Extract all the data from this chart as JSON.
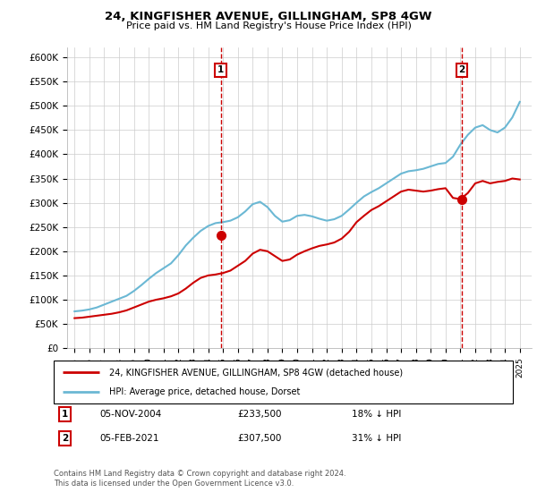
{
  "title": "24, KINGFISHER AVENUE, GILLINGHAM, SP8 4GW",
  "subtitle": "Price paid vs. HM Land Registry's House Price Index (HPI)",
  "ylabel_ticks": [
    "£0",
    "£50K",
    "£100K",
    "£150K",
    "£200K",
    "£250K",
    "£300K",
    "£350K",
    "£400K",
    "£450K",
    "£500K",
    "£550K",
    "£600K"
  ],
  "ytick_values": [
    0,
    50000,
    100000,
    150000,
    200000,
    250000,
    300000,
    350000,
    400000,
    450000,
    500000,
    550000,
    600000
  ],
  "ylim": [
    0,
    620000
  ],
  "xlim_start": 1994.5,
  "xlim_end": 2025.8,
  "hpi_color": "#6BB8D4",
  "price_color": "#CC0000",
  "marker1_date": 2004.85,
  "marker1_price": 233500,
  "marker1_label": "1",
  "marker1_text": "05-NOV-2004",
  "marker1_amount": "£233,500",
  "marker1_pct": "18% ↓ HPI",
  "marker2_date": 2021.08,
  "marker2_price": 307500,
  "marker2_label": "2",
  "marker2_text": "05-FEB-2021",
  "marker2_amount": "£307,500",
  "marker2_pct": "31% ↓ HPI",
  "legend_line1": "24, KINGFISHER AVENUE, GILLINGHAM, SP8 4GW (detached house)",
  "legend_line2": "HPI: Average price, detached house, Dorset",
  "footer": "Contains HM Land Registry data © Crown copyright and database right 2024.\nThis data is licensed under the Open Government Licence v3.0.",
  "hpi_x": [
    1995,
    1995.5,
    1996,
    1996.5,
    1997,
    1997.5,
    1998,
    1998.5,
    1999,
    1999.5,
    2000,
    2000.5,
    2001,
    2001.5,
    2002,
    2002.5,
    2003,
    2003.5,
    2004,
    2004.5,
    2005,
    2005.5,
    2006,
    2006.5,
    2007,
    2007.5,
    2008,
    2008.5,
    2009,
    2009.5,
    2010,
    2010.5,
    2011,
    2011.5,
    2012,
    2012.5,
    2013,
    2013.5,
    2014,
    2014.5,
    2015,
    2015.5,
    2016,
    2016.5,
    2017,
    2017.5,
    2018,
    2018.5,
    2019,
    2019.5,
    2020,
    2020.5,
    2021,
    2021.5,
    2022,
    2022.5,
    2023,
    2023.5,
    2024,
    2024.5,
    2025
  ],
  "hpi_y": [
    76000,
    77500,
    80000,
    84000,
    90000,
    96000,
    102000,
    108000,
    118000,
    130000,
    143000,
    155000,
    165000,
    175000,
    192000,
    212000,
    228000,
    242000,
    252000,
    258000,
    260000,
    263000,
    270000,
    282000,
    297000,
    302000,
    291000,
    273000,
    261000,
    264000,
    273000,
    275000,
    272000,
    267000,
    263000,
    266000,
    273000,
    286000,
    300000,
    313000,
    322000,
    330000,
    340000,
    350000,
    360000,
    365000,
    367000,
    370000,
    375000,
    380000,
    382000,
    395000,
    420000,
    440000,
    455000,
    460000,
    450000,
    445000,
    455000,
    476000,
    508000
  ],
  "price_x": [
    1995,
    1995.5,
    1996,
    1996.5,
    1997,
    1997.5,
    1998,
    1998.5,
    1999,
    1999.5,
    2000,
    2000.5,
    2001,
    2001.5,
    2002,
    2002.5,
    2003,
    2003.5,
    2004,
    2004.5,
    2005,
    2005.5,
    2006,
    2006.5,
    2007,
    2007.5,
    2008,
    2008.5,
    2009,
    2009.5,
    2010,
    2010.5,
    2011,
    2011.5,
    2012,
    2012.5,
    2013,
    2013.5,
    2014,
    2014.5,
    2015,
    2015.5,
    2016,
    2016.5,
    2017,
    2017.5,
    2018,
    2018.5,
    2019,
    2019.5,
    2020,
    2020.5,
    2021,
    2021.5,
    2022,
    2022.5,
    2023,
    2023.5,
    2024,
    2024.5,
    2025
  ],
  "price_y": [
    62000,
    63000,
    65000,
    67000,
    69000,
    71000,
    74000,
    78000,
    84000,
    90000,
    96000,
    100000,
    103000,
    107000,
    113000,
    123000,
    135000,
    145000,
    150000,
    152000,
    155000,
    160000,
    170000,
    180000,
    195000,
    203000,
    200000,
    190000,
    180000,
    183000,
    193000,
    200000,
    206000,
    211000,
    214000,
    218000,
    226000,
    240000,
    260000,
    273000,
    285000,
    293000,
    303000,
    313000,
    323000,
    327000,
    325000,
    323000,
    325000,
    328000,
    330000,
    310000,
    307500,
    320000,
    340000,
    345000,
    340000,
    343000,
    345000,
    350000,
    348000
  ]
}
